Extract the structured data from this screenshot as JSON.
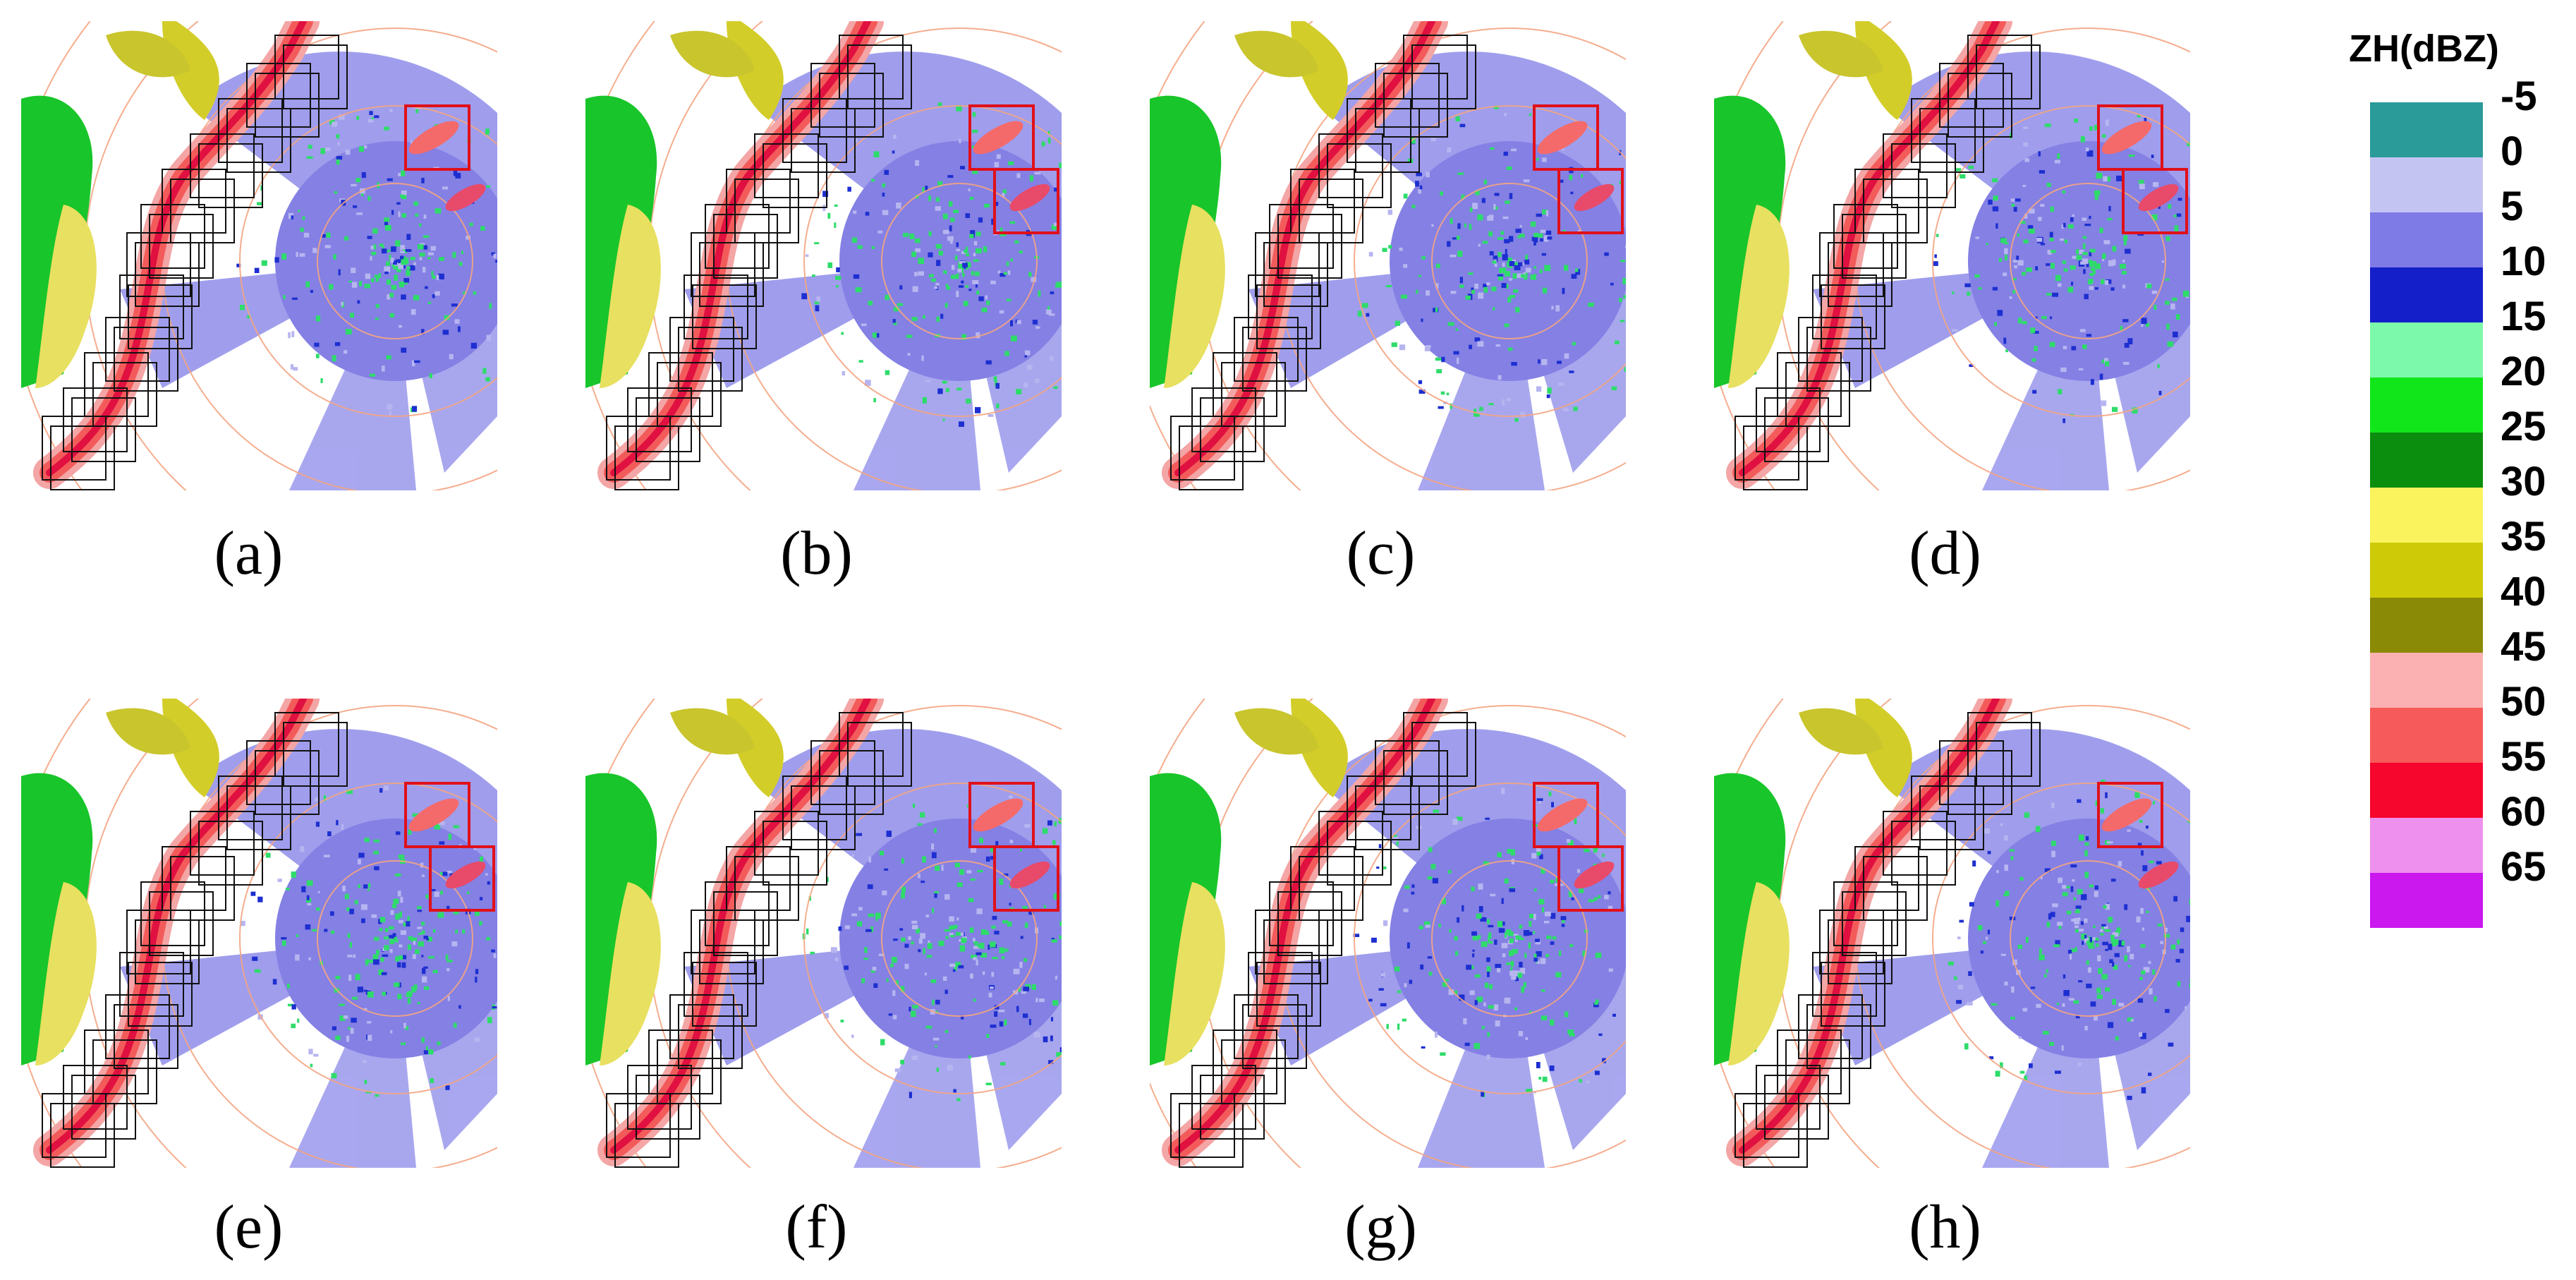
{
  "figure": {
    "panels": [
      {
        "label": "(a)"
      },
      {
        "label": "(b)"
      },
      {
        "label": "(c)"
      },
      {
        "label": "(d)"
      },
      {
        "label": "(e)"
      },
      {
        "label": "(f)"
      },
      {
        "label": "(g)"
      },
      {
        "label": "(h)"
      }
    ]
  },
  "colorbar": {
    "title": "ZH(dBZ)",
    "labels": [
      "-5",
      "0",
      "5",
      "10",
      "15",
      "20",
      "25",
      "30",
      "35",
      "40",
      "45",
      "50",
      "55",
      "60",
      "65"
    ],
    "colors": [
      "#2a9b99",
      "#c4c4f3",
      "#7e7ae6",
      "#141fc9",
      "#7cf9aa",
      "#11e61a",
      "#0b8d0e",
      "#faf35d",
      "#cfca08",
      "#8a8a06",
      "#fbb1b1",
      "#f75a5a",
      "#f6052d",
      "#ee90ee",
      "#ca18ee"
    ]
  }
}
